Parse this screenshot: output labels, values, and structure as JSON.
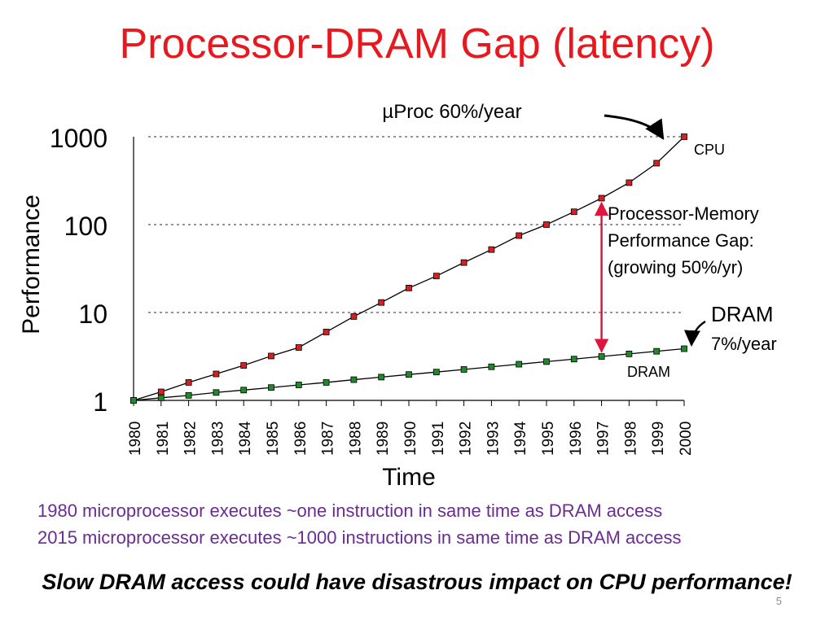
{
  "slide": {
    "title": "Processor-DRAM Gap (latency)",
    "notes": [
      "1980 microprocessor executes ~one instruction in same time as DRAM access",
      "2015 microprocessor executes ~1000 instructions in same time as DRAM access"
    ],
    "footer": "Slow DRAM access could have disastrous impact on CPU performance!",
    "page_number": "5"
  },
  "colors": {
    "title": "#e8181f",
    "notes": "#6a2c91",
    "cpu_marker": "#d42020",
    "dram_marker": "#1f8a2a",
    "gap_arrow": "#e0143c"
  },
  "chart_data": {
    "type": "line",
    "title": "",
    "xlabel": "Time",
    "ylabel": "Performance",
    "yscale": "log",
    "ylim": [
      1,
      1000
    ],
    "yticks": [
      1,
      10,
      100,
      1000
    ],
    "ytick_labels": [
      "1",
      "10",
      "100",
      "1000"
    ],
    "x": [
      1980,
      1981,
      1982,
      1983,
      1984,
      1985,
      1986,
      1987,
      1988,
      1989,
      1990,
      1991,
      1992,
      1993,
      1994,
      1995,
      1996,
      1997,
      1998,
      1999,
      2000
    ],
    "xtick_labels": [
      "1980",
      "1981",
      "1982",
      "1983",
      "1984",
      "1985",
      "1986",
      "1987",
      "1988",
      "1989",
      "1990",
      "1991",
      "1992",
      "1993",
      "1994",
      "1995",
      "1996",
      "1997",
      "1998",
      "1999",
      "2000"
    ],
    "gridlines_y": [
      10,
      100,
      1000
    ],
    "series": [
      {
        "name": "CPU",
        "color": "#d42020",
        "values": [
          1,
          1.25,
          1.6,
          2,
          2.5,
          3.2,
          4,
          6,
          9,
          13,
          19,
          26,
          37,
          52,
          75,
          100,
          140,
          200,
          300,
          500,
          1000
        ]
      },
      {
        "name": "DRAM",
        "color": "#1f8a2a",
        "values": [
          1,
          1.07,
          1.14,
          1.23,
          1.31,
          1.4,
          1.5,
          1.6,
          1.72,
          1.84,
          1.97,
          2.1,
          2.25,
          2.41,
          2.58,
          2.76,
          2.95,
          3.16,
          3.38,
          3.62,
          3.87
        ]
      }
    ],
    "annotations": {
      "cpu_growth": "µProc 60%/year",
      "cpu_label": "CPU",
      "gap_label": [
        "Processor-Memory",
        "Performance Gap:",
        "(growing 50%/yr)"
      ],
      "gap_year": 1997,
      "dram_name": "DRAM",
      "dram_growth": "7%/year",
      "dram_label": "DRAM"
    }
  }
}
